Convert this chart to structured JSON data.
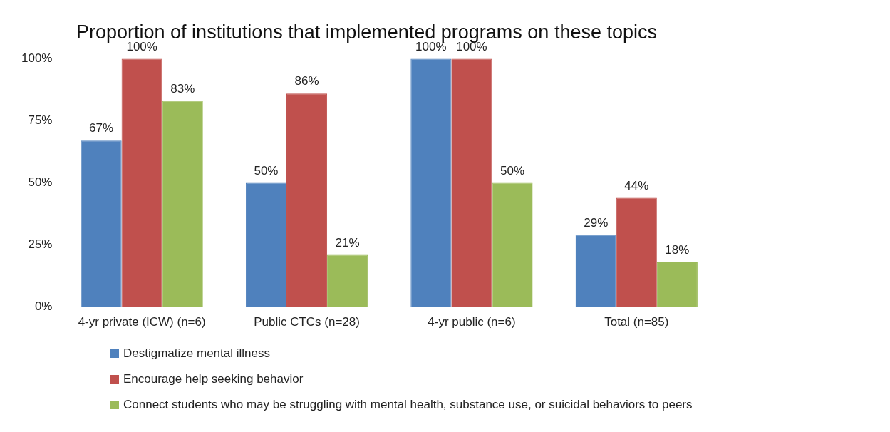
{
  "chart_data": {
    "type": "bar",
    "title": "Proportion of institutions that implemented programs on these topics",
    "categories": [
      "4-yr private (ICW) (n=6)",
      "Public CTCs (n=28)",
      "4-yr public (n=6)",
      "Total (n=85)"
    ],
    "series": [
      {
        "name": "Destigmatize mental illness",
        "color": "#4f81bd",
        "values": [
          67,
          50,
          100,
          29
        ],
        "value_labels": [
          "67%",
          "50%",
          "100%",
          "29%"
        ]
      },
      {
        "name": "Encourage help seeking behavior",
        "color": "#c0504d",
        "values": [
          100,
          86,
          100,
          44
        ],
        "value_labels": [
          "100%",
          "86%",
          "100%",
          "44%"
        ]
      },
      {
        "name": "Connect students who may be struggling with mental health, substance use, or suicidal behaviors to peers",
        "color": "#9bbb59",
        "values": [
          83,
          21,
          50,
          18
        ],
        "value_labels": [
          "83%",
          "21%",
          "50%",
          "18%"
        ]
      }
    ],
    "ylim": [
      0,
      100
    ],
    "yticks": [
      {
        "value": 0,
        "label": "0%"
      },
      {
        "value": 25,
        "label": "25%"
      },
      {
        "value": 50,
        "label": "50%"
      },
      {
        "value": 75,
        "label": "75%"
      },
      {
        "value": 100,
        "label": "100%"
      }
    ],
    "grid": false,
    "legend": "bottom"
  }
}
